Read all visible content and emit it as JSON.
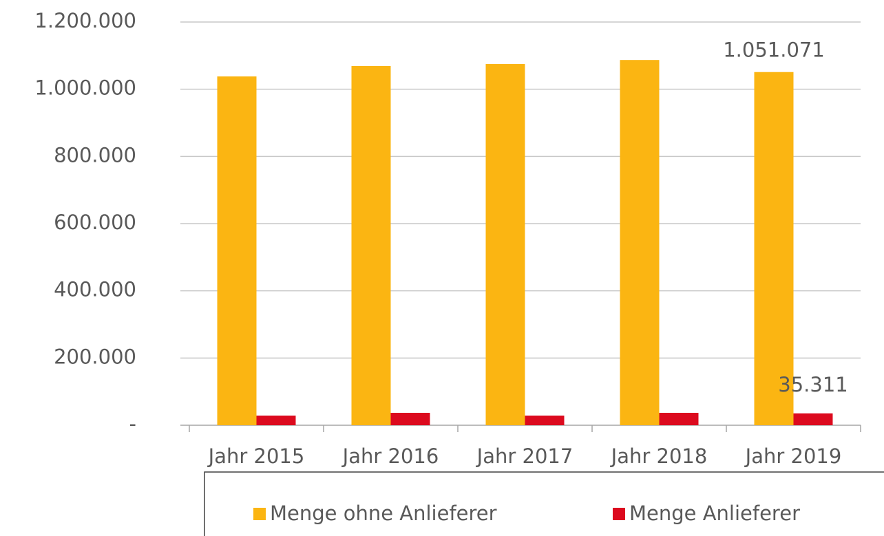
{
  "chart_data": {
    "type": "bar",
    "categories": [
      "Jahr 2015",
      "Jahr 2016",
      "Jahr 2017",
      "Jahr 2018",
      "Jahr 2019"
    ],
    "series": [
      {
        "name": "Menge ohne Anlieferer",
        "color": "#fbb512",
        "values": [
          1038000,
          1069000,
          1075000,
          1087000,
          1051071
        ],
        "value_labels": [
          null,
          null,
          null,
          null,
          "1.051.071"
        ]
      },
      {
        "name": "Menge Anlieferer",
        "color": "#dc0a1e",
        "values": [
          28700,
          36900,
          28700,
          36900,
          35311
        ],
        "value_labels": [
          null,
          null,
          null,
          null,
          "35.311"
        ]
      }
    ],
    "ylim": [
      0,
      1200000
    ],
    "yticks": [
      {
        "value": 0,
        "label": "-"
      },
      {
        "value": 200000,
        "label": "200.000"
      },
      {
        "value": 400000,
        "label": "400.000"
      },
      {
        "value": 600000,
        "label": "600.000"
      },
      {
        "value": 800000,
        "label": "800.000"
      },
      {
        "value": 1000000,
        "label": "1.000.000"
      },
      {
        "value": 1200000,
        "label": "1.200.000"
      }
    ],
    "grid": true,
    "legend": "bottom"
  }
}
